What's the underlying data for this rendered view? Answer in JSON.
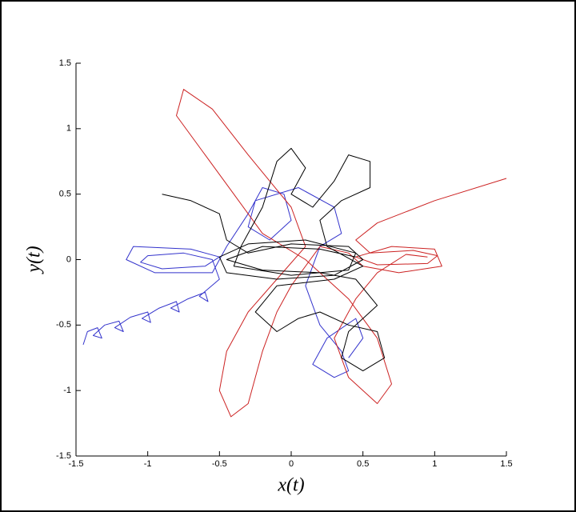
{
  "chart_data": {
    "type": "line",
    "x_label": "x(t)",
    "y_label": "y(t)",
    "xlim": [
      -1.5,
      1.5
    ],
    "ylim": [
      -1.5,
      1.5
    ],
    "xticks": [
      -1.5,
      -1,
      -0.5,
      0,
      0.5,
      1,
      1.5
    ],
    "yticks": [
      -1.5,
      -1,
      -0.5,
      0,
      0.5,
      1,
      1.5
    ],
    "grid": false,
    "series": [
      {
        "color": "#3333cc",
        "x": [
          -1.45,
          -1.42,
          -1.35,
          -1.32,
          -1.38,
          -1.3,
          -1.2,
          -1.17,
          -1.23,
          -1.12,
          -1.0,
          -0.98,
          -1.04,
          -0.92,
          -0.8,
          -0.78,
          -0.84,
          -0.72,
          -0.6,
          -0.58,
          -0.64,
          -0.5,
          -0.55,
          -0.75,
          -1.0,
          -1.05,
          -0.9,
          -0.6,
          -0.5,
          -0.7,
          -1.1,
          -1.15,
          -0.95,
          -0.55,
          -0.45,
          -0.3,
          -0.2,
          -0.05,
          0.0,
          -0.15,
          -0.3,
          -0.25,
          0.05,
          0.3,
          0.35,
          0.2,
          0.1,
          0.2,
          0.35,
          0.4,
          0.3,
          0.15,
          0.25,
          0.45,
          0.5,
          0.4
        ],
        "values": [
          -0.65,
          -0.55,
          -0.52,
          -0.6,
          -0.58,
          -0.5,
          -0.47,
          -0.55,
          -0.52,
          -0.44,
          -0.4,
          -0.48,
          -0.45,
          -0.37,
          -0.32,
          -0.4,
          -0.37,
          -0.3,
          -0.25,
          -0.32,
          -0.28,
          -0.15,
          0.0,
          0.05,
          0.03,
          -0.02,
          -0.07,
          -0.05,
          0.02,
          0.08,
          0.1,
          0.0,
          -0.1,
          -0.1,
          0.1,
          0.35,
          0.55,
          0.5,
          0.3,
          0.15,
          0.25,
          0.45,
          0.55,
          0.4,
          0.2,
          0.1,
          -0.2,
          -0.5,
          -0.7,
          -0.85,
          -0.9,
          -0.8,
          -0.6,
          -0.45,
          -0.6,
          -0.75
        ]
      },
      {
        "color": "#cc2222",
        "x": [
          1.5,
          1.0,
          0.6,
          0.45,
          0.55,
          0.85,
          1.02,
          0.95,
          0.6,
          0.45,
          0.7,
          1.0,
          1.05,
          0.75,
          0.5,
          0.4,
          0.2,
          0.0,
          -0.1,
          -0.2,
          -0.3,
          -0.42,
          -0.5,
          -0.45,
          -0.3,
          -0.1,
          0.1,
          0.0,
          -0.3,
          -0.55,
          -0.75,
          -0.8,
          -0.6,
          -0.4,
          -0.2,
          0.1,
          0.4,
          0.6,
          0.7,
          0.6,
          0.4,
          0.3,
          0.45,
          0.6,
          0.8,
          0.95
        ],
        "values": [
          0.62,
          0.45,
          0.28,
          0.15,
          0.05,
          0.07,
          0.03,
          -0.03,
          -0.04,
          0.02,
          0.1,
          0.08,
          -0.05,
          -0.1,
          -0.05,
          0.05,
          0.1,
          -0.2,
          -0.4,
          -0.7,
          -1.1,
          -1.2,
          -1.0,
          -0.7,
          -0.4,
          -0.15,
          0.1,
          0.4,
          0.8,
          1.15,
          1.3,
          1.1,
          0.8,
          0.5,
          0.2,
          0.0,
          -0.3,
          -0.6,
          -0.95,
          -1.1,
          -0.9,
          -0.6,
          -0.3,
          -0.1,
          0.04,
          0.02
        ]
      },
      {
        "color": "#000000",
        "x": [
          -0.9,
          -0.7,
          -0.5,
          -0.45,
          -0.3,
          0.0,
          0.4,
          0.5,
          0.3,
          -0.1,
          -0.45,
          -0.5,
          -0.3,
          0.1,
          0.45,
          0.4,
          0.0,
          -0.4,
          -0.35,
          -0.2,
          -0.1,
          0.0,
          0.1,
          0.0,
          0.15,
          0.3,
          0.4,
          0.55,
          0.55,
          0.35,
          0.2,
          0.25,
          0.5,
          0.3,
          -0.1,
          -0.25,
          -0.1,
          0.05,
          0.2,
          0.4,
          0.6,
          0.65,
          0.5,
          0.35,
          0.4,
          0.6,
          0.45,
          0.2,
          -0.2,
          -0.45,
          -0.2,
          0.2,
          0.45
        ],
        "values": [
          0.5,
          0.45,
          0.35,
          0.15,
          0.05,
          0.12,
          0.1,
          0.0,
          -0.12,
          -0.15,
          -0.1,
          0.02,
          0.12,
          0.15,
          0.05,
          -0.08,
          -0.12,
          -0.05,
          0.1,
          0.4,
          0.75,
          0.85,
          0.7,
          0.5,
          0.4,
          0.6,
          0.8,
          0.75,
          0.55,
          0.45,
          0.3,
          0.1,
          -0.05,
          -0.15,
          -0.2,
          -0.4,
          -0.55,
          -0.45,
          -0.4,
          -0.5,
          -0.55,
          -0.75,
          -0.85,
          -0.75,
          -0.55,
          -0.35,
          -0.15,
          -0.1,
          -0.08,
          0.0,
          0.1,
          0.08,
          0.02
        ]
      }
    ]
  }
}
